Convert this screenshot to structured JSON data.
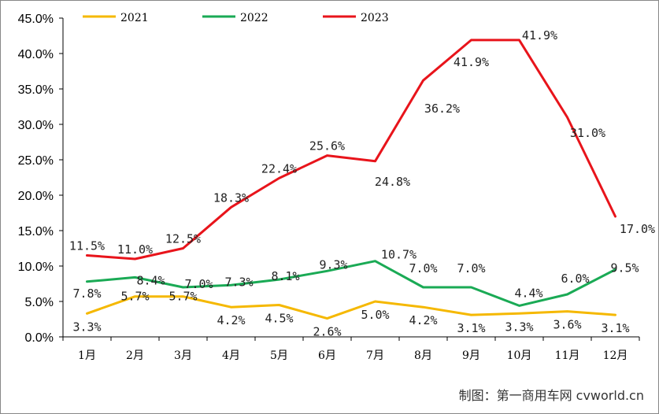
{
  "chart_data": {
    "type": "line",
    "title": "",
    "xlabel": "",
    "ylabel": "",
    "ylim": [
      0,
      45
    ],
    "y_ticks": [
      "0.0%",
      "5.0%",
      "10.0%",
      "15.0%",
      "20.0%",
      "25.0%",
      "30.0%",
      "35.0%",
      "40.0%",
      "45.0%"
    ],
    "categories": [
      "1月",
      "2月",
      "3月",
      "4月",
      "5月",
      "6月",
      "7月",
      "8月",
      "9月",
      "10月",
      "11月",
      "12月"
    ],
    "legend_position": "top",
    "series": [
      {
        "name": "2021",
        "color": "#F5B800",
        "values": [
          3.3,
          5.7,
          5.7,
          4.2,
          4.5,
          2.6,
          5.0,
          4.2,
          3.1,
          3.3,
          3.6,
          3.1
        ],
        "labels": [
          "3.3%",
          "5.7%",
          "5.7%",
          "4.2%",
          "4.5%",
          "2.6%",
          "5.0%",
          "4.2%",
          "3.1%",
          "3.3%",
          "3.6%",
          "3.1%"
        ]
      },
      {
        "name": "2022",
        "color": "#1AAA55",
        "values": [
          7.8,
          8.4,
          7.0,
          7.3,
          8.1,
          9.3,
          10.7,
          7.0,
          7.0,
          4.4,
          6.0,
          9.5
        ],
        "labels": [
          "7.8%",
          "8.4%",
          "7.0%",
          "7.3%",
          "8.1%",
          "9.3%",
          "10.7%",
          "7.0%",
          "7.0%",
          "4.4%",
          "6.0%",
          "9.5%"
        ]
      },
      {
        "name": "2023",
        "color": "#E8141B",
        "values": [
          11.5,
          11.0,
          12.5,
          18.3,
          22.4,
          25.6,
          24.8,
          36.2,
          41.9,
          41.9,
          31.0,
          17.0
        ],
        "labels": [
          "11.5%",
          "11.0%",
          "12.5%",
          "18.3%",
          "22.4%",
          "25.6%",
          "24.8%",
          "36.2%",
          "41.9%",
          "41.9%",
          "31.0%",
          "17.0%"
        ]
      }
    ]
  },
  "source_label": "制图：第一商用车网 cvworld.cn"
}
